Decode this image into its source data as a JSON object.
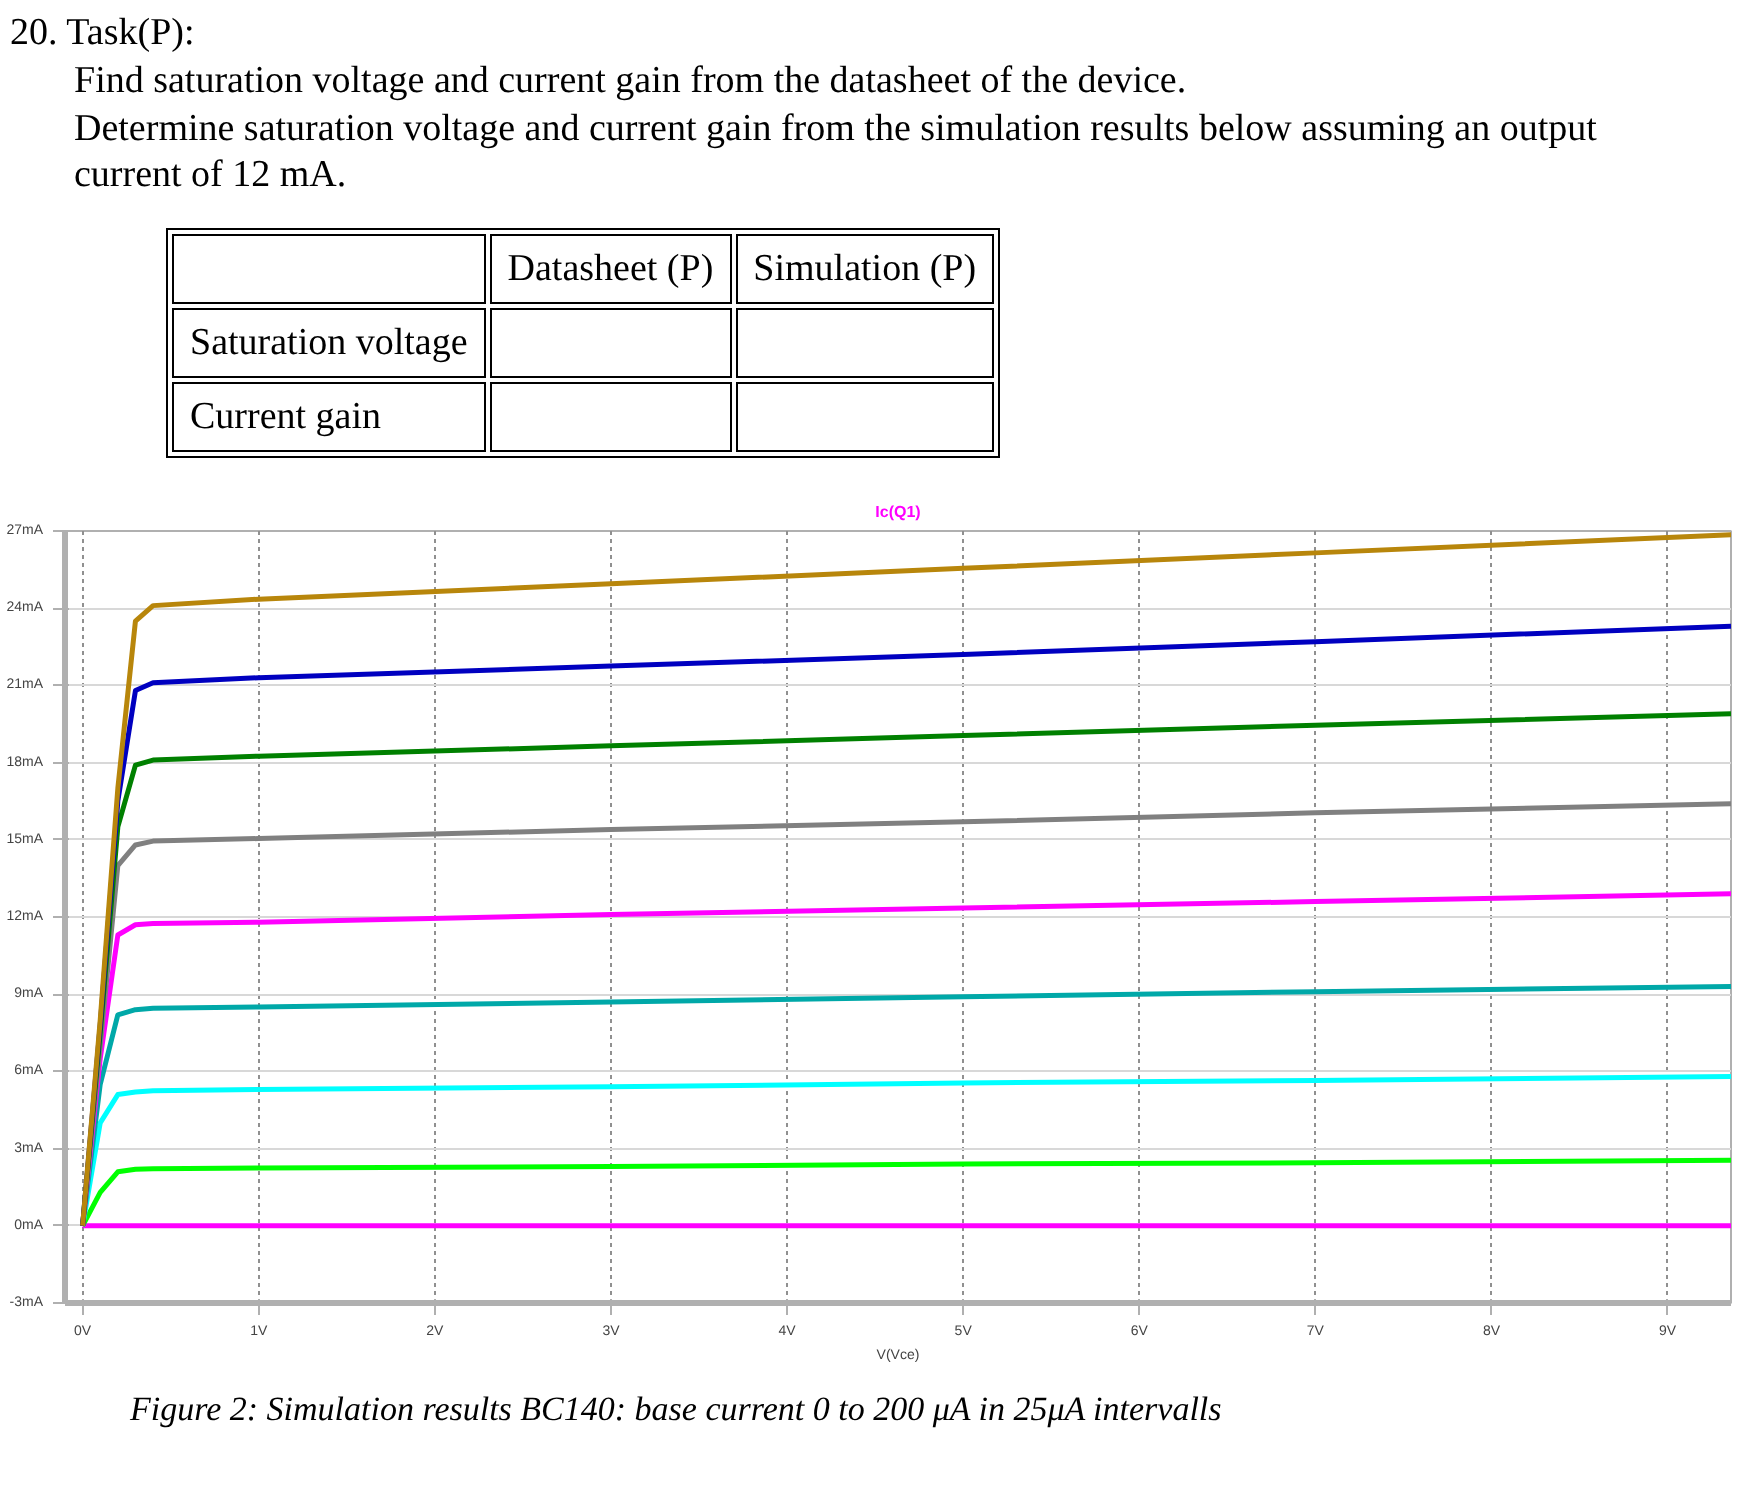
{
  "chart_data": {
    "type": "line",
    "title": "20. Task(P):",
    "subtitle": "Find saturation voltage and current gain from the datasheet of the device.",
    "annotations": [
      "Determine saturation voltage and current gain from the simulation results below assuming an output current of 12 mA.",
      "Datasheet (P)",
      "Simulation (P)",
      "Saturation voltage",
      "Current gain",
      "Ic(Q1)",
      "Figure 2: Simulation results BC140: base current 0 to 200 μA in 25μA intervalls"
    ],
    "xlabel": "V(Vce)",
    "x": [
      0,
      0.1,
      0.2,
      0.3,
      0.4,
      1,
      3,
      5,
      7,
      9.36
    ],
    "series": [
      {
        "color": "#ff00ff",
        "values": [
          0,
          0,
          0,
          0,
          0,
          0,
          0,
          0,
          0,
          0
        ]
      },
      {
        "color": "#00ff00",
        "values": [
          0,
          1.3,
          2.1,
          2.2,
          2.22,
          2.25,
          2.3,
          2.4,
          2.45,
          2.55
        ]
      },
      {
        "color": "#00ffff",
        "values": [
          0,
          4,
          5.1,
          5.2,
          5.25,
          5.3,
          5.4,
          5.55,
          5.65,
          5.8
        ]
      },
      {
        "color": "#00a8a8",
        "values": [
          0,
          5.5,
          8.2,
          8.4,
          8.45,
          8.5,
          8.7,
          8.9,
          9.1,
          9.3
        ]
      },
      {
        "color": "#ff00ff",
        "values": [
          0,
          6.5,
          11.3,
          11.7,
          11.75,
          11.8,
          12.1,
          12.35,
          12.6,
          12.9
        ]
      },
      {
        "color": "#808080",
        "values": [
          0,
          7,
          14,
          14.8,
          14.95,
          15.05,
          15.4,
          15.7,
          16.05,
          16.4
        ]
      },
      {
        "color": "#008000",
        "values": [
          0,
          7.5,
          15.5,
          17.9,
          18.1,
          18.25,
          18.65,
          19.05,
          19.45,
          19.9
        ]
      },
      {
        "color": "#0000c0",
        "values": [
          0,
          7.8,
          16.5,
          20.8,
          21.1,
          21.3,
          21.75,
          22.2,
          22.7,
          23.3
        ]
      },
      {
        "color": "#b8860b",
        "values": [
          0,
          8,
          17,
          23.5,
          24.1,
          24.35,
          24.95,
          25.55,
          26.15,
          26.85
        ]
      }
    ],
    "xlim": [
      -0.1,
      9.36
    ],
    "ylim": [
      -3,
      27
    ],
    "xticks": [
      {
        "value": 0,
        "label": "0V"
      },
      {
        "value": 1,
        "label": "1V"
      },
      {
        "value": 2,
        "label": "2V"
      },
      {
        "value": 3,
        "label": "3V"
      },
      {
        "value": 4,
        "label": "4V"
      },
      {
        "value": 5,
        "label": "5V"
      },
      {
        "value": 6,
        "label": "6V"
      },
      {
        "value": 7,
        "label": "7V"
      },
      {
        "value": 8,
        "label": "8V"
      },
      {
        "value": 9,
        "label": "9V"
      }
    ],
    "yticks": [
      {
        "value": -3,
        "label": "-3mA"
      },
      {
        "value": 0,
        "label": "0mA"
      },
      {
        "value": 3,
        "label": "3mA"
      },
      {
        "value": 6,
        "label": "6mA"
      },
      {
        "value": 9,
        "label": "9mA"
      },
      {
        "value": 12,
        "label": "12mA"
      },
      {
        "value": 15,
        "label": "15mA"
      },
      {
        "value": 18,
        "label": "18mA"
      },
      {
        "value": 21,
        "label": "21mA"
      },
      {
        "value": 24,
        "label": "24mA"
      },
      {
        "value": 27,
        "label": "27mA"
      }
    ],
    "grid": true,
    "marker": "none",
    "line_style": "solid"
  }
}
